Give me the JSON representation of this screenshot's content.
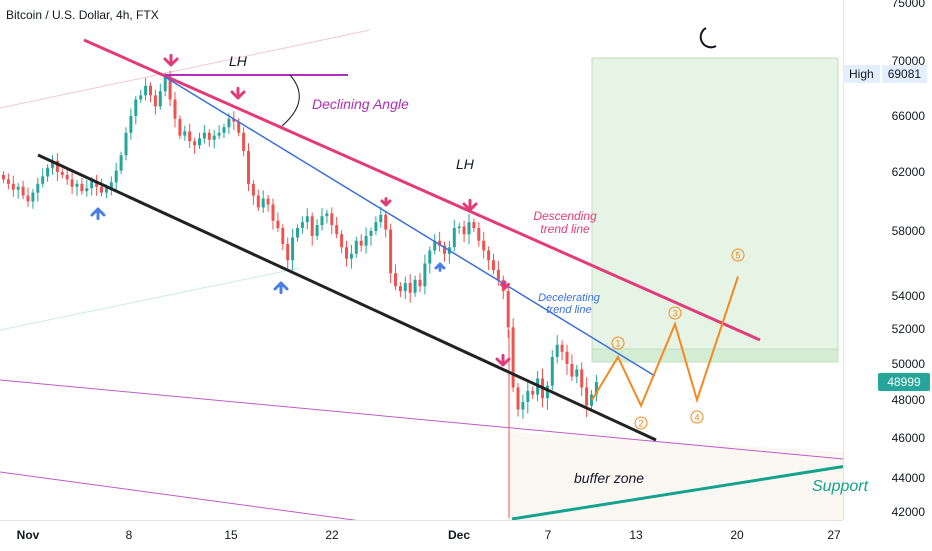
{
  "header": {
    "title": "Bitcoin / U.S. Dollar, 4h, FTX"
  },
  "chart_data": {
    "type": "candlestick",
    "symbol": "Bitcoin / U.S. Dollar",
    "interval": "4h",
    "exchange": "FTX",
    "y_ticks": [
      "75000",
      "70000",
      "66000",
      "62000",
      "58000",
      "54000",
      "52000",
      "50000",
      "48000",
      "46000",
      "44000",
      "42000"
    ],
    "x_ticks": [
      "Nov",
      "8",
      "15",
      "22",
      "Dec",
      "7",
      "13",
      "20",
      "27"
    ],
    "last_price": "48999",
    "high_label": "High",
    "high_value": "69081",
    "annotations": {
      "lh_left": "LH",
      "lh_right": "LH",
      "declining_angle": "Declining Angle",
      "descending_line": "Descending trend line",
      "decelerating_line": "Decelerating trend line",
      "buffer_zone": "buffer zone",
      "support": "Support",
      "waves": [
        "1",
        "2",
        "3",
        "4",
        "5"
      ]
    },
    "projection": [
      48000,
      50400,
      47700,
      52300,
      48000,
      55200
    ],
    "candles_close": [
      61500,
      61200,
      60800,
      61000,
      60400,
      60000,
      60600,
      61200,
      61700,
      62300,
      62800,
      62000,
      61800,
      61500,
      61000,
      61200,
      60700,
      60900,
      61400,
      61000,
      60600,
      60900,
      61300,
      62100,
      63200,
      64800,
      66000,
      67200,
      67500,
      68200,
      67500,
      66700,
      67800,
      68900,
      67200,
      65800,
      64600,
      64900,
      64200,
      63900,
      64400,
      64800,
      64300,
      64600,
      64800,
      65200,
      65800,
      65600,
      64800,
      63500,
      61200,
      60400,
      59600,
      60200,
      59800,
      58700,
      58200,
      57200,
      56200,
      57600,
      58200,
      58600,
      59000,
      57700,
      58400,
      59000,
      59200,
      58400,
      57800,
      57000,
      56300,
      56600,
      57400,
      57100,
      57700,
      58000,
      58600,
      59100,
      58100,
      55400,
      54600,
      54300,
      54800,
      54200,
      55000,
      54600,
      56000,
      56800,
      57400,
      57100,
      56600,
      57000,
      58200,
      58300,
      57800,
      58600,
      58200,
      57400,
      56800,
      56200,
      55600,
      55000,
      54300,
      52100,
      48700,
      47500,
      47900,
      48500,
      48300,
      49200,
      48100,
      48800,
      50400,
      51100,
      50700,
      50000,
      49300,
      49700,
      48700,
      47700,
      48300,
      48999
    ]
  }
}
